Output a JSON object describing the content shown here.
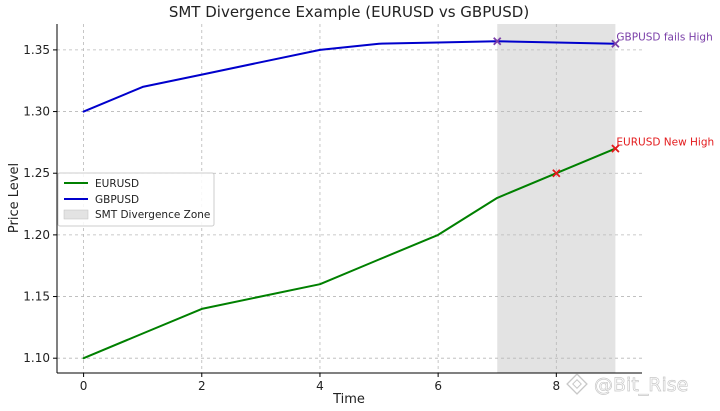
{
  "chart_data": {
    "type": "line",
    "title": "SMT Divergence Example (EURUSD vs GBPUSD)",
    "xlabel": "Time",
    "ylabel": "Price Level",
    "xlim": [
      -0.45,
      9.45
    ],
    "ylim": [
      1.088,
      1.371
    ],
    "xticks": [
      0,
      2,
      4,
      6,
      8
    ],
    "yticks": [
      1.1,
      1.15,
      1.2,
      1.25,
      1.3,
      1.35
    ],
    "ytick_labels": [
      "1.10",
      "1.15",
      "1.20",
      "1.25",
      "1.30",
      "1.35"
    ],
    "grid": true,
    "legend_position": "center-left",
    "x": [
      0,
      1,
      2,
      3,
      4,
      5,
      6,
      7,
      8,
      9
    ],
    "series": [
      {
        "name": "EURUSD",
        "color": "#008000",
        "values": [
          1.1,
          1.12,
          1.14,
          1.15,
          1.16,
          1.18,
          1.2,
          1.23,
          1.25,
          1.27
        ]
      },
      {
        "name": "GBPUSD",
        "color": "#0000cc",
        "values": [
          1.3,
          1.32,
          1.33,
          1.34,
          1.35,
          1.355,
          1.356,
          1.357,
          1.356,
          1.355
        ]
      }
    ],
    "shaded_region": {
      "name": "SMT Divergence Zone",
      "x_start": 7,
      "x_end": 9,
      "color": "#d9d9d9"
    },
    "markers": [
      {
        "series": "EURUSD",
        "x": 8,
        "y": 1.25,
        "symbol": "x",
        "color": "#e31a1c"
      },
      {
        "series": "EURUSD",
        "x": 9,
        "y": 1.27,
        "symbol": "x",
        "color": "#e31a1c"
      },
      {
        "series": "GBPUSD",
        "x": 7,
        "y": 1.357,
        "symbol": "x",
        "color": "#7a3fa8"
      },
      {
        "series": "GBPUSD",
        "x": 9,
        "y": 1.355,
        "symbol": "x",
        "color": "#7a3fa8"
      }
    ],
    "annotations": [
      {
        "text": "EURUSD New High",
        "x": 9,
        "y": 1.27,
        "color": "#e31a1c"
      },
      {
        "text": "GBPUSD fails High",
        "x": 9,
        "y": 1.355,
        "color": "#7a3fa8"
      }
    ]
  },
  "watermark": {
    "text": "@Bit_Rise"
  }
}
